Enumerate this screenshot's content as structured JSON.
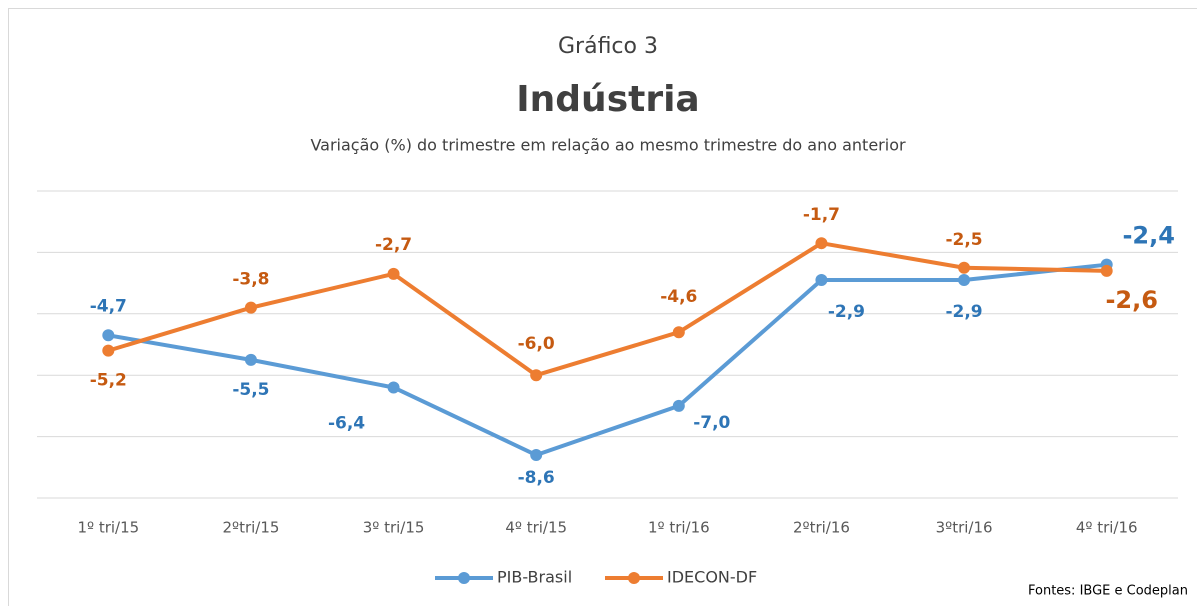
{
  "chart_data": {
    "type": "line",
    "title": "Gráfico 3",
    "subtitle": "Indústria",
    "y_axis_label": "Variação (%) do trimestre em relação ao mesmo trimestre do ano anterior",
    "source": "Fontes: IBGE e Codeplan",
    "categories": [
      "1º tri/15",
      "2ºtri/15",
      "3º tri/15",
      "4º tri/15",
      "1º tri/16",
      "2ºtri/16",
      "3ºtri/16",
      "4º tri/16"
    ],
    "series": [
      {
        "name": "PIB-Brasil",
        "color": "#5b9bd5",
        "label_color": "#2e75b6",
        "values": [
          -4.7,
          -5.5,
          -6.4,
          -8.6,
          -7.0,
          -2.9,
          -2.9,
          -2.4
        ],
        "value_labels": [
          "-4,7",
          "-5,5",
          "-6,4",
          "-8,6",
          "-7,0",
          "-2,9",
          "-2,9",
          "-2,4"
        ]
      },
      {
        "name": "IDECON-DF",
        "color": "#ed7d31",
        "label_color": "#c55a11",
        "values": [
          -5.2,
          -3.8,
          -2.7,
          -6.0,
          -4.6,
          -1.7,
          -2.5,
          -2.6
        ],
        "value_labels": [
          "-5,2",
          "-3,8",
          "-2,7",
          "-6,0",
          "-4,6",
          "-1,7",
          "-2,5",
          "-2,6"
        ]
      }
    ],
    "ylim": [
      -10,
      0
    ],
    "yticks": [
      0,
      -2,
      -4,
      -6,
      -8,
      -10
    ],
    "grid": true,
    "legend": "bottom"
  }
}
